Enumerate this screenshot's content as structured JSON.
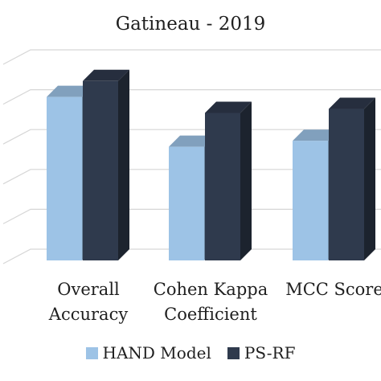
{
  "chart_data": {
    "type": "bar",
    "title": "Gatineau - 2019",
    "categories": [
      [
        "Overall",
        "Accuracy"
      ],
      [
        "Cohen Kappa",
        "Coefficient"
      ],
      [
        "MCC Score"
      ]
    ],
    "series": [
      {
        "name": "HAND Model",
        "color": "#9dc3e6",
        "values": [
          0.82,
          0.57,
          0.6
        ]
      },
      {
        "name": "PS-RF",
        "color": "#2f3a4d",
        "values": [
          0.9,
          0.74,
          0.76
        ]
      }
    ],
    "ylim": [
      0,
      1
    ],
    "grid": true,
    "style": "3d",
    "legend_position": "bottom"
  }
}
